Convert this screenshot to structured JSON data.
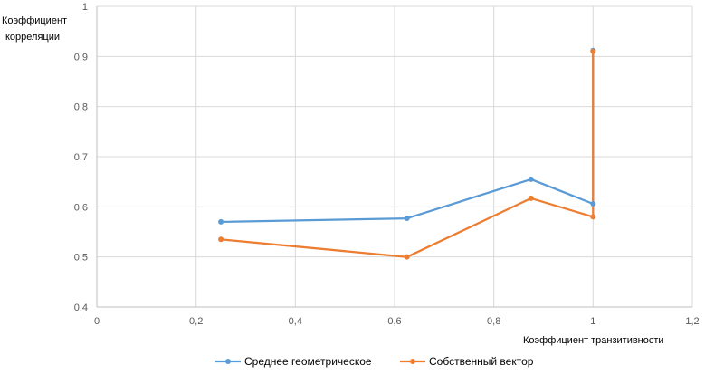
{
  "chart_data": {
    "type": "line",
    "title": "",
    "xlabel": "Коэффициент транзитивности",
    "ylabel_lines": [
      "Коэффициент",
      "корреляции"
    ],
    "xlim": [
      0,
      1.2
    ],
    "ylim": [
      0.4,
      1
    ],
    "x_ticks": [
      0,
      0.2,
      0.4,
      0.6,
      0.8,
      1,
      1.2
    ],
    "x_tick_labels": [
      "0",
      "0,2",
      "0,4",
      "0,6",
      "0,8",
      "1",
      "1,2"
    ],
    "y_ticks": [
      0.4,
      0.5,
      0.6,
      0.7,
      0.8,
      0.9,
      1
    ],
    "y_tick_labels": [
      "0,4",
      "0,5",
      "0,6",
      "0,7",
      "0,8",
      "0,9",
      "1"
    ],
    "grid": true,
    "legend_position": "bottom",
    "series": [
      {
        "name": "Среднее геометрическое",
        "color": "#5B9BD5",
        "x": [
          0.25,
          0.625,
          0.875,
          1,
          1
        ],
        "y": [
          0.57,
          0.577,
          0.655,
          0.606,
          0.912
        ]
      },
      {
        "name": "Собственный вектор",
        "color": "#ED7D31",
        "x": [
          0.25,
          0.625,
          0.875,
          1,
          1
        ],
        "y": [
          0.535,
          0.5,
          0.617,
          0.58,
          0.91
        ]
      }
    ]
  }
}
